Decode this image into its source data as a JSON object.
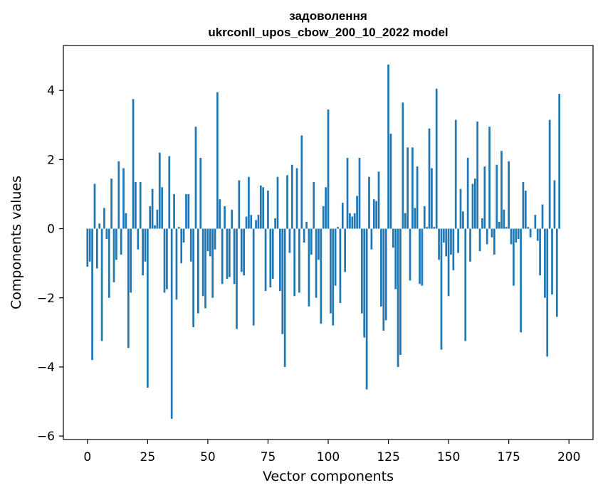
{
  "chart_data": {
    "type": "bar",
    "title_line1": "задоволення",
    "title_line2": "ukrconll_upos_cbow_200_10_2022 model",
    "xlabel": "Vector components",
    "ylabel": "Components values",
    "xlim": [
      -10,
      210
    ],
    "ylim": [
      -6.1,
      5.3
    ],
    "xticks": [
      0,
      25,
      50,
      75,
      100,
      125,
      150,
      175,
      200
    ],
    "yticks": [
      -6,
      -4,
      -2,
      0,
      2,
      4
    ],
    "ytick_labels": [
      "−6",
      "−4",
      "−2",
      "0",
      "2",
      "4"
    ],
    "bar_color": "#1f77b4",
    "values": [
      -1.1,
      -0.95,
      -3.8,
      1.3,
      -1.15,
      0.15,
      -3.25,
      0.6,
      -0.3,
      -2.0,
      1.45,
      -1.55,
      -0.9,
      1.95,
      -0.75,
      1.75,
      0.45,
      -3.45,
      -1.85,
      3.75,
      1.35,
      -0.6,
      1.35,
      -1.35,
      -0.95,
      -4.6,
      0.65,
      1.15,
      0.1,
      0.55,
      2.2,
      1.2,
      -1.85,
      -1.75,
      2.1,
      -5.5,
      1.0,
      -2.05,
      0.05,
      -1.0,
      -0.4,
      1.0,
      1.0,
      -0.95,
      -2.85,
      2.95,
      -2.45,
      2.05,
      -1.95,
      -2.3,
      -0.65,
      -0.8,
      -2.0,
      -0.6,
      3.95,
      0.85,
      -1.6,
      0.65,
      -1.45,
      -1.4,
      0.55,
      -1.6,
      -2.9,
      1.4,
      -1.25,
      -1.35,
      0.35,
      1.5,
      0.4,
      -2.8,
      0.25,
      0.4,
      1.25,
      1.2,
      -1.8,
      1.1,
      -1.7,
      -1.45,
      0.3,
      1.5,
      -1.8,
      -3.05,
      -4.0,
      1.55,
      -0.7,
      1.85,
      -1.95,
      1.75,
      -1.85,
      2.7,
      -0.4,
      0.2,
      -2.25,
      -0.75,
      1.35,
      -2.0,
      -0.9,
      -2.75,
      0.65,
      1.2,
      3.45,
      -2.45,
      -2.8,
      -1.65,
      0.05,
      -2.15,
      0.75,
      -1.25,
      2.05,
      0.45,
      0.35,
      0.45,
      0.95,
      2.05,
      -2.45,
      -3.15,
      -4.65,
      1.5,
      -0.6,
      0.85,
      0.8,
      1.65,
      -2.25,
      -2.95,
      -2.65,
      4.75,
      2.75,
      -0.55,
      -1.75,
      -4.0,
      -3.65,
      3.65,
      0.45,
      2.35,
      -1.5,
      2.35,
      0.6,
      1.8,
      -1.6,
      -1.65,
      0.65,
      0.05,
      2.9,
      1.75,
      0.05,
      4.05,
      -0.9,
      -3.5,
      -0.4,
      -0.8,
      -1.95,
      -0.75,
      -1.2,
      3.15,
      -0.7,
      1.15,
      0.5,
      -3.25,
      2.05,
      -0.95,
      1.3,
      1.45,
      3.1,
      -0.65,
      0.3,
      1.8,
      -0.45,
      2.95,
      -0.25,
      -0.75,
      1.85,
      0.2,
      2.25,
      0.55,
      0.05,
      1.95,
      -0.45,
      -1.65,
      -0.4,
      -0.3,
      -3.0,
      1.35,
      1.1,
      0.05,
      -0.25,
      0.0,
      0.4,
      -0.35,
      -1.35,
      0.7,
      -2.0,
      -3.7,
      3.15,
      -1.9,
      1.4,
      -2.55,
      3.9
    ]
  }
}
